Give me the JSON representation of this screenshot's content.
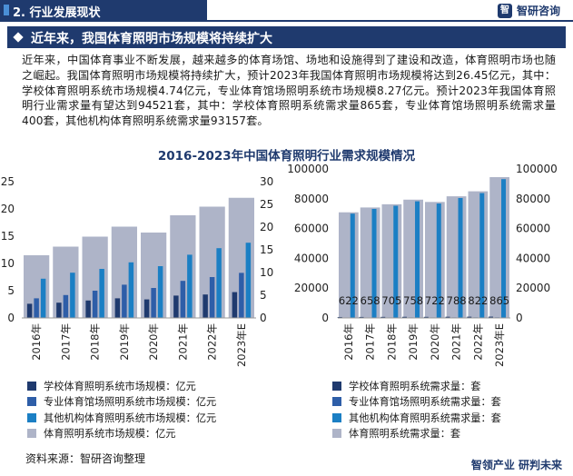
{
  "header": {
    "section_title": "2. 行业发展现状",
    "brand": "智研咨询",
    "brand_logo": "智"
  },
  "banner": {
    "title": "近年来，我国体育照明市场规模将持续扩大"
  },
  "intro": "近年来，中国体育事业不断发展，越来越多的体育场馆、场地和设施得到了建设和改造，体育照明市场也随之崛起。我国体育照明市场规模将持续扩大，预计2023年我国体育照明市场规模将达到26.45亿元，其中：学校体育照明系统市场规模4.74亿元，专业体育馆场照明系统市场规模8.27亿元。预计2023年我国体育照明行业需求量有望达到94521套，其中：学校体育照明系统需求量865套，专业体育馆场照明系统需求量400套，其他机构体育照明系统需求量93157套。",
  "chart_data": [
    {
      "type": "bar",
      "title": "2016-2023年中国体育照明行业需求规模情况",
      "categories": [
        "2016年",
        "2017年",
        "2018年",
        "2019年",
        "2020年",
        "2021年",
        "2022年",
        "2023年E"
      ],
      "ylim": [
        0,
        25
      ],
      "yticks": [
        0,
        5,
        10,
        15,
        20,
        25
      ],
      "right_ylim": [
        0,
        30
      ],
      "right_yticks": [
        0,
        5,
        10,
        15,
        20,
        25,
        30
      ],
      "series": [
        {
          "name": "学校体育照明系统市场规模：亿元",
          "axis": "left",
          "color": "#1f3a6e",
          "values": [
            2.6,
            2.8,
            3.2,
            3.6,
            3.4,
            4.1,
            4.3,
            4.74
          ]
        },
        {
          "name": "专业体育馆场照明系统市场规模：亿元",
          "axis": "left",
          "color": "#2e5ea8",
          "values": [
            3.6,
            4.2,
            5.0,
            6.1,
            5.5,
            6.8,
            7.5,
            8.27
          ]
        },
        {
          "name": "其他机构体育照明系统市场规模：亿元",
          "axis": "left",
          "color": "#1b7fc4",
          "values": [
            7.2,
            8.3,
            9.0,
            10.2,
            9.5,
            11.6,
            12.8,
            13.8
          ]
        },
        {
          "name": "体育照明系统市场规模：亿元",
          "axis": "right",
          "color": "#aeb4c8",
          "values": [
            13.8,
            15.7,
            17.9,
            20.1,
            18.8,
            22.6,
            24.5,
            26.45
          ]
        }
      ]
    },
    {
      "type": "bar",
      "categories": [
        "2016年",
        "2017年",
        "2018年",
        "2019年",
        "2020年",
        "2021年",
        "2022年",
        "2023年E"
      ],
      "ylim": [
        0,
        100000
      ],
      "yticks": [
        0,
        20000,
        40000,
        60000,
        80000,
        100000
      ],
      "series": [
        {
          "name": "学校体育照明系统需求量：套",
          "color": "#1f3a6e",
          "values": [
            622,
            658,
            705,
            758,
            722,
            788,
            822,
            865
          ],
          "data_labels": [
            "622",
            "658",
            "705",
            "758",
            "722",
            "788",
            "822",
            "865"
          ]
        },
        {
          "name": "专业体育馆场照明系统需求量：套",
          "color": "#2e5ea8",
          "values": [
            285,
            300,
            320,
            345,
            330,
            360,
            380,
            400
          ]
        },
        {
          "name": "其他机构体育照明系统需求量：套",
          "color": "#1b7fc4",
          "values": [
            70000,
            73200,
            75300,
            78300,
            76800,
            80500,
            83800,
            93157
          ]
        },
        {
          "name": "体育照明系统需求量：套",
          "color": "#aeb4c8",
          "values": [
            70900,
            74150,
            76300,
            79400,
            77850,
            81650,
            85000,
            94521
          ]
        }
      ]
    }
  ],
  "source": "资料来源：智研咨询整理",
  "footer_right": "智领产业  研判未来"
}
